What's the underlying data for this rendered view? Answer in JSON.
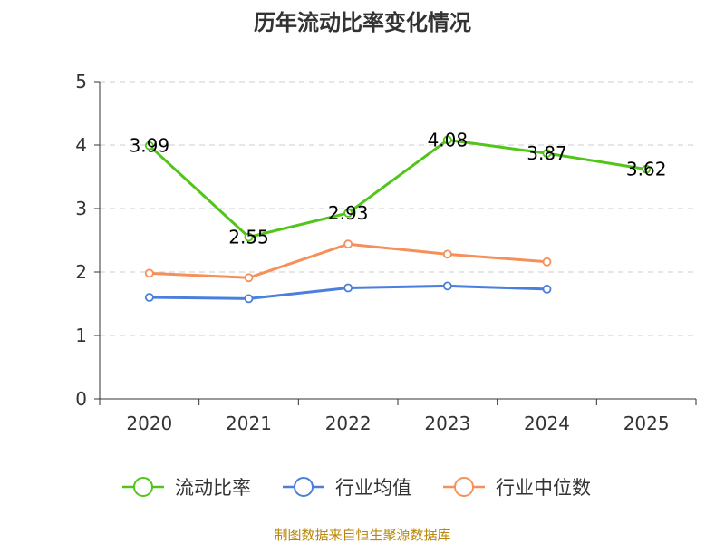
{
  "chart_data": {
    "type": "line",
    "title": "历年流动比率变化情况",
    "categories": [
      "2020",
      "2021",
      "2022",
      "2023",
      "2024",
      "2025"
    ],
    "ylim": [
      0,
      5
    ],
    "yticks": [
      0,
      1,
      2,
      3,
      4,
      5
    ],
    "grid": true,
    "legend_position": "bottom",
    "series": [
      {
        "name": "流动比率",
        "color": "#52c41a",
        "values": [
          3.99,
          2.55,
          2.93,
          4.08,
          3.87,
          3.62
        ],
        "labels": [
          "3.99",
          "2.55",
          "2.93",
          "4.08",
          "3.87",
          "3.62"
        ],
        "show_labels": true
      },
      {
        "name": "行业均值",
        "color": "#4a7fdc",
        "values": [
          1.6,
          1.58,
          1.75,
          1.78,
          1.73,
          null
        ],
        "show_labels": false
      },
      {
        "name": "行业中位数",
        "color": "#f5905a",
        "values": [
          1.98,
          1.91,
          2.44,
          2.28,
          2.16,
          null
        ],
        "show_labels": false
      }
    ],
    "source": "制图数据来自恒生聚源数据库"
  }
}
